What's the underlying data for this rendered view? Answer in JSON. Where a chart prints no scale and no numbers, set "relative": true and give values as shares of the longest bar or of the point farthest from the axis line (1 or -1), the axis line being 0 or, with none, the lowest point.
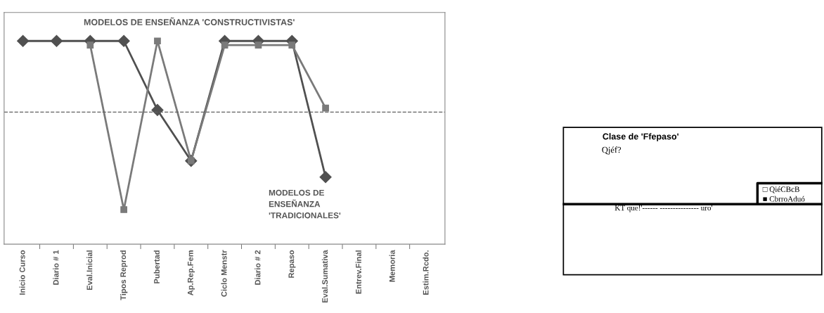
{
  "chart_data": [
    {
      "type": "line",
      "title": "MODELOS DE ENSEÑANZA 'CONSTRUCTIVISTAS'",
      "relative": true,
      "categories": [
        "Inicio Curso",
        "Diario # 1",
        "Eval.Inicial",
        "Tipos Reprod",
        "Pubertad",
        "Ap.Rep.Fem",
        "Ciclo Menstr",
        "Diario # 2",
        "Repaso",
        "Eval.Sumativa",
        "Entrev.Final",
        "Memoria",
        "Estim.Rcdo."
      ],
      "series": [
        {
          "color": "#505050",
          "marker": "diamond",
          "values": [
            1,
            1,
            1,
            1,
            0.66,
            0.41,
            1,
            1,
            1,
            0.33,
            null,
            null,
            null
          ]
        },
        {
          "color": "#7a7a7a",
          "marker": "square",
          "values": [
            null,
            null,
            0.98,
            0.17,
            1,
            0.41,
            0.98,
            0.98,
            0.98,
            0.67,
            null,
            null,
            null
          ]
        }
      ],
      "ref_lines": [
        {
          "axis": "y",
          "value": 0.65,
          "color": "#606060",
          "line_style": "dashed"
        }
      ],
      "annotations": [
        "MODELOS DE\nENSEÑANZA\n'TRADICIONALES'"
      ],
      "grid": false
    },
    {
      "type": "other",
      "title": "Clase de 'Ffepaso'",
      "subtitle": "Qjéf?",
      "annotations": [
        "□ QiéCBcB",
        "■ CbrroAduó",
        "KT que!'------ --------------- uro'"
      ]
    }
  ]
}
